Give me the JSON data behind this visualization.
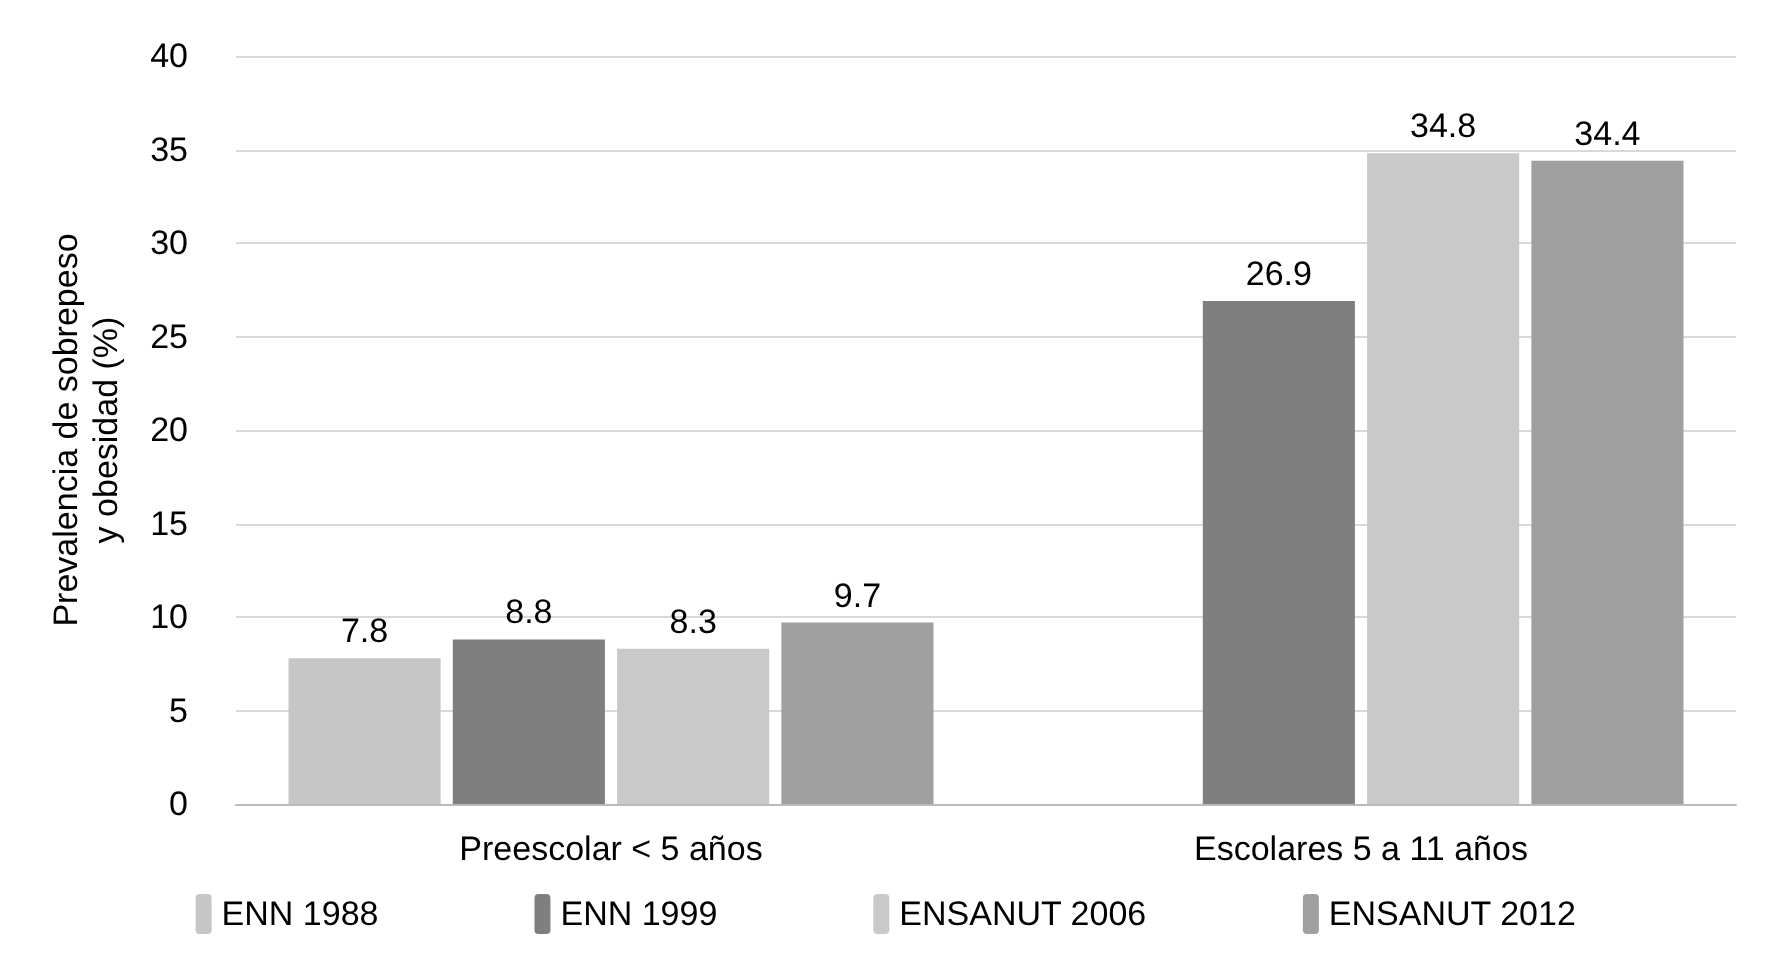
{
  "chart_data": {
    "type": "bar",
    "ylabel": "Prevalencia de sobrepeso\ny obesidad (%)",
    "categories": [
      "Preescolar < 5 años",
      "Escolares 5 a 11 años"
    ],
    "series": [
      {
        "name": "ENN 1988",
        "color": "#c6c6c6",
        "values": [
          7.8,
          null
        ]
      },
      {
        "name": "ENN 1999",
        "color": "#7f7f7f",
        "values": [
          8.8,
          26.9
        ]
      },
      {
        "name": "ENSANUT 2006",
        "color": "#c9c9c9",
        "values": [
          8.3,
          34.8
        ]
      },
      {
        "name": "ENSANUT 2012",
        "color": "#a0a0a0",
        "values": [
          9.7,
          34.4
        ]
      }
    ],
    "ylim": [
      0,
      40
    ],
    "yticks": [
      0,
      5,
      10,
      15,
      20,
      25,
      30,
      35,
      40
    ],
    "grid": "y",
    "legend": "bottom",
    "data_labels": true
  }
}
